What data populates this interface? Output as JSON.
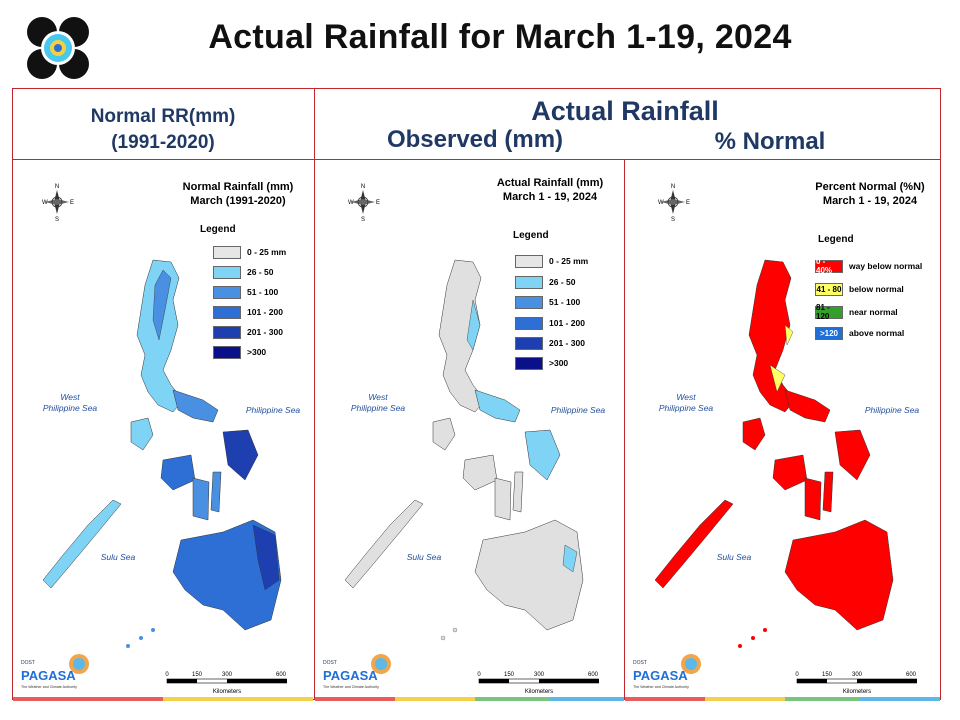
{
  "title": "Actual Rainfall for March 1-19, 2024",
  "headers": {
    "normal_line1": "Normal RR(mm)",
    "normal_line2": "(1991-2020)",
    "actual": "Actual Rainfall",
    "observed": "Observed (mm)",
    "percent": "% Normal"
  },
  "panels": [
    {
      "title_line1": "Normal Rainfall (mm)",
      "title_line2": "March (1991-2020)",
      "legend_title": "Legend",
      "legend": [
        {
          "label": "0 - 25 mm",
          "color": "#e6e6e6"
        },
        {
          "label": "26 - 50",
          "color": "#7fd3f5"
        },
        {
          "label": "51 - 100",
          "color": "#4a90e2"
        },
        {
          "label": "101 - 200",
          "color": "#2e6fd6"
        },
        {
          "label": "201 - 300",
          "color": "#1e3fb0"
        },
        {
          "label": ">300",
          "color": "#0a0f8a"
        }
      ]
    },
    {
      "title_line1": "Actual Rainfall (mm)",
      "title_line2": "March 1 - 19, 2024",
      "legend_title": "Legend",
      "legend": [
        {
          "label": "0 - 25 mm",
          "color": "#e6e6e6"
        },
        {
          "label": "26 - 50",
          "color": "#7fd3f5"
        },
        {
          "label": "51 - 100",
          "color": "#4a90e2"
        },
        {
          "label": "101 - 200",
          "color": "#2e6fd6"
        },
        {
          "label": "201 - 300",
          "color": "#1e3fb0"
        },
        {
          "label": ">300",
          "color": "#0a0f8a"
        }
      ]
    },
    {
      "title_line1": "Percent Normal (%N)",
      "title_line2": "March 1 - 19, 2024",
      "legend_title": "Legend",
      "legend": [
        {
          "swatch": "0 - 40%",
          "label": "way below normal",
          "color": "#ff0000"
        },
        {
          "swatch": "41 - 80",
          "label": "below normal",
          "color": "#ffff66"
        },
        {
          "swatch": "81 - 120",
          "label": "near normal",
          "color": "#33a02c"
        },
        {
          "swatch": ">120",
          "label": "above normal",
          "color": "#1f6fd6"
        }
      ]
    }
  ],
  "seas": {
    "west_line1": "West",
    "west_line2": "Philippine Sea",
    "east": "Philippine Sea",
    "sulu": "Sulu Sea"
  },
  "scale": {
    "ticks": [
      "0",
      "150",
      "300",
      "600"
    ],
    "unit": "Kilometers"
  },
  "compass": {
    "n": "N",
    "s": "S",
    "e": "E",
    "w": "W"
  },
  "branding": {
    "name": "PAGASA",
    "prefix": "DOST",
    "tagline": "The Weather and Climate Authority"
  },
  "colors": {
    "frame": "#c0272d",
    "header_text": "#1f3864",
    "bottom_bar": [
      "#e85c5c",
      "#f2d14c",
      "#7bc47f",
      "#f2a64c",
      "#5bb8e8"
    ]
  }
}
